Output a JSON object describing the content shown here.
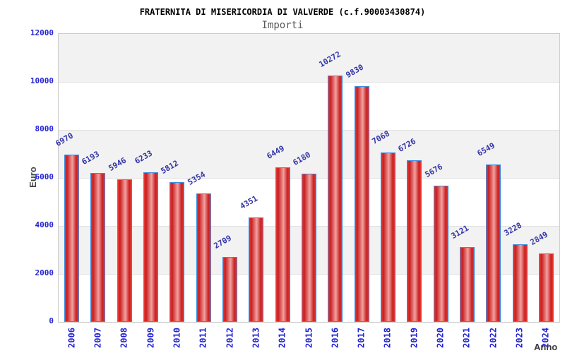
{
  "chart_data": {
    "type": "bar",
    "title": "FRATERNITA DI MISERICORDIA DI VALVERDE (c.f.90003430874)",
    "subtitle": "Importi",
    "xlabel": "Anno",
    "ylabel": "Euro",
    "categories": [
      "2006",
      "2007",
      "2008",
      "2009",
      "2010",
      "2011",
      "2012",
      "2013",
      "2014",
      "2015",
      "2016",
      "2017",
      "2018",
      "2019",
      "2020",
      "2021",
      "2022",
      "2023",
      "2024"
    ],
    "values": [
      6970,
      6193,
      5946,
      6233,
      5812,
      5354,
      2709,
      4351,
      6449,
      6180,
      10272,
      9830,
      7068,
      6726,
      5676,
      3121,
      6549,
      3228,
      2849
    ],
    "ylim": [
      0,
      12000
    ],
    "yticks": [
      0,
      2000,
      4000,
      6000,
      8000,
      10000,
      12000
    ],
    "grid": "horizontal-bands",
    "legend_position": "none",
    "colors": {
      "bar_fill_dark": "#c91f1f",
      "bar_fill_mid": "#e23b3b",
      "bar_fill_light": "#f2a1a1",
      "bar_border": "#4189dd",
      "axis_tick_text": "#2323d2",
      "value_label_text": "#3434a8",
      "band_fill": "#f2f2f2",
      "plot_border": "#cccccc",
      "title_text": "#000000",
      "subtitle_text": "#585858",
      "axis_title_text": "#444444"
    }
  }
}
